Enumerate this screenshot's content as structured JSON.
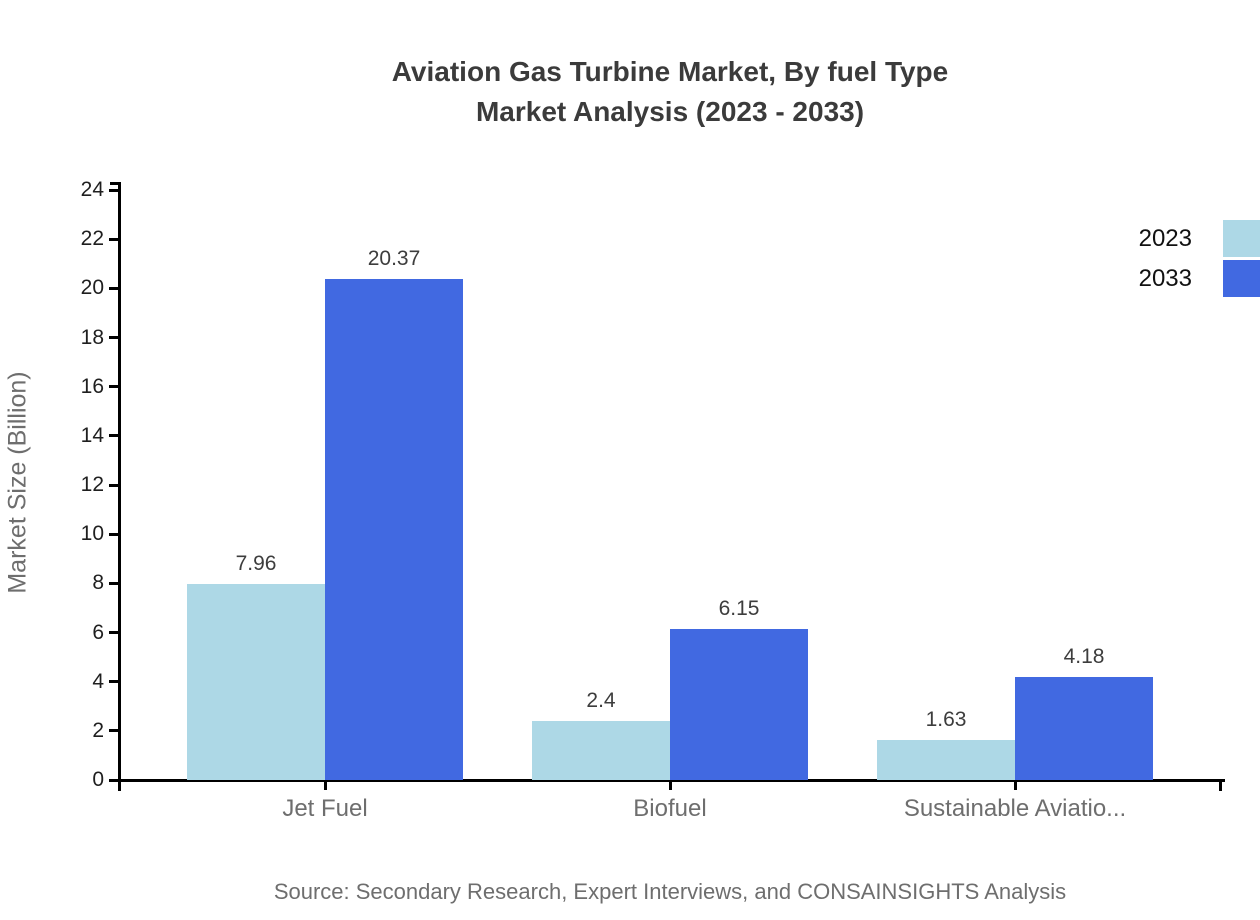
{
  "header": {
    "title": "Aviation Gas Turbine Market, By fuel Type",
    "subtitle": "Market Analysis (2023 - 2033)"
  },
  "source_note": "Source: Secondary Research, Expert Interviews, and CONSAINSIGHTS Analysis",
  "colors": {
    "series_2023": "#ADD8E6",
    "series_2033": "#4169E1",
    "axis": "#000000",
    "title_text": "#3b3b3b",
    "tick_text": "#1f1f1f",
    "muted_text": "#6e6e6e"
  },
  "legend": {
    "items": [
      {
        "label": "2023",
        "color": "#ADD8E6"
      },
      {
        "label": "2033",
        "color": "#4169E1"
      }
    ]
  },
  "chart_data": {
    "type": "bar",
    "title": "Aviation Gas Turbine Market, By fuel Type Market Analysis (2023 - 2033)",
    "categories": [
      "Jet Fuel",
      "Biofuel",
      "Sustainable Aviatio..."
    ],
    "series": [
      {
        "name": "2023",
        "color": "#ADD8E6",
        "values": [
          7.96,
          2.4,
          1.63
        ]
      },
      {
        "name": "2033",
        "color": "#4169E1",
        "values": [
          20.37,
          6.15,
          4.18
        ]
      }
    ],
    "xlabel": "",
    "ylabel": "Market Size (Billion)",
    "ylim": [
      0,
      24
    ],
    "yticks": [
      0,
      2,
      4,
      6,
      8,
      10,
      12,
      14,
      16,
      18,
      20,
      22,
      24
    ],
    "grid": false,
    "legend_position": "top-right",
    "value_labels_shown": true
  }
}
